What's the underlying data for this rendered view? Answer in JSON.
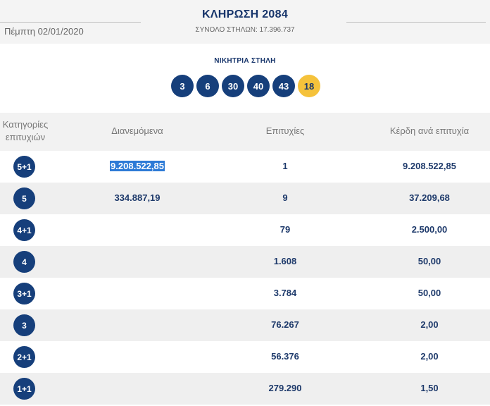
{
  "header": {
    "date": "Πέμπτη 02/01/2020",
    "draw_title": "ΚΛΗΡΩΣΗ 2084",
    "total_columns": "ΣΥΝΟΛΟ ΣΤΗΛΩΝ: 17.396.737"
  },
  "winning": {
    "label": "ΝΙΚΗΤΡΙΑ ΣΤΗΛΗ",
    "numbers": [
      "3",
      "6",
      "30",
      "40",
      "43"
    ],
    "bonus": "18",
    "colors": {
      "ball": "#163f7b",
      "bonus": "#f5c23b"
    }
  },
  "table": {
    "headers": {
      "category": "Κατηγορίες επιτυχιών",
      "distributed": "Διανεμόμενα",
      "hits": "Επιτυχίες",
      "prize": "Κέρδη ανά επιτυχία"
    },
    "rows": [
      {
        "category": "5+1",
        "distributed": "9.208.522,85",
        "hits": "1",
        "prize": "9.208.522,85"
      },
      {
        "category": "5",
        "distributed": "334.887,19",
        "hits": "9",
        "prize": "37.209,68"
      },
      {
        "category": "4+1",
        "distributed": "",
        "hits": "79",
        "prize": "2.500,00"
      },
      {
        "category": "4",
        "distributed": "",
        "hits": "1.608",
        "prize": "50,00"
      },
      {
        "category": "3+1",
        "distributed": "",
        "hits": "3.784",
        "prize": "50,00"
      },
      {
        "category": "3",
        "distributed": "",
        "hits": "76.267",
        "prize": "2,00"
      },
      {
        "category": "2+1",
        "distributed": "",
        "hits": "56.376",
        "prize": "2,00"
      },
      {
        "category": "1+1",
        "distributed": "",
        "hits": "279.290",
        "prize": "1,50"
      }
    ]
  }
}
